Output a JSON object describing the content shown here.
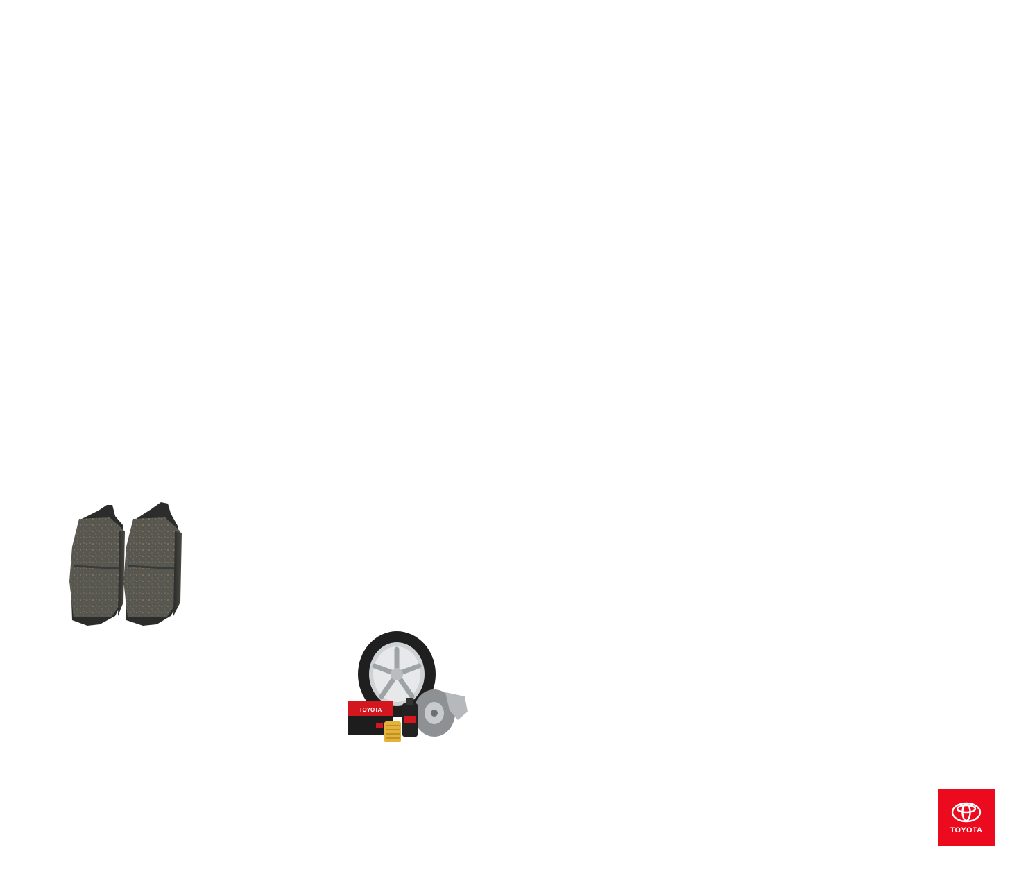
{
  "brand": {
    "name": "TOYOTA",
    "badge_color": "#eb0a1e",
    "emblem_icon": "toyota-emblem-icon"
  },
  "images": {
    "brake_pads": {
      "icon": "brake-pads-image"
    },
    "parts_bundle": {
      "icon": "parts-bundle-image",
      "battery_label": "TOYOTA"
    }
  }
}
